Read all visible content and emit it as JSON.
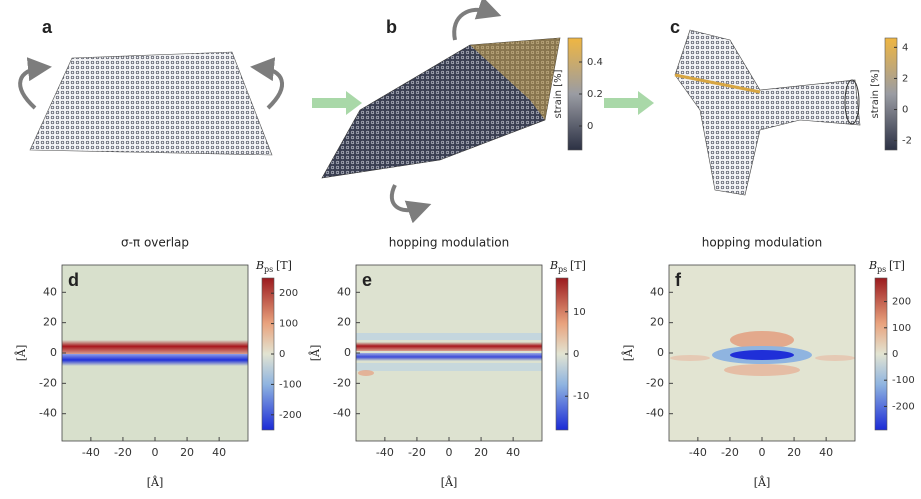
{
  "top_panels": [
    {
      "letter": "a"
    },
    {
      "letter": "b",
      "colorbar": {
        "label": "strain [%]",
        "lim": [
          -0.15,
          0.55
        ],
        "ticks": [
          0,
          0.2,
          0.4
        ]
      }
    },
    {
      "letter": "c",
      "colorbar": {
        "label": "strain [%]",
        "lim": [
          -2.6,
          4.6
        ],
        "ticks": [
          -2,
          0,
          2,
          4
        ]
      }
    }
  ],
  "maps": [
    {
      "letter": "d",
      "title": "σ-π overlap",
      "xlabel": "[Å]",
      "ylabel": "[Å]",
      "xlim": [
        -58,
        58
      ],
      "ylim": [
        -58,
        58
      ],
      "xticks": [
        -40,
        -20,
        0,
        20,
        40
      ],
      "yticks": [
        -40,
        -20,
        0,
        20,
        40
      ],
      "colorbar": {
        "symbol": "B",
        "subscript": "ps",
        "unit": "[T]",
        "lim": [
          -250,
          250
        ],
        "ticks": [
          -200,
          -100,
          0,
          100,
          200
        ]
      }
    },
    {
      "letter": "e",
      "title": "hopping modulation",
      "xlabel": "[Å]",
      "ylabel": "[Å]",
      "xlim": [
        -58,
        58
      ],
      "ylim": [
        -58,
        58
      ],
      "xticks": [
        -40,
        -20,
        0,
        20,
        40
      ],
      "yticks": [
        -40,
        -20,
        0,
        20,
        40
      ],
      "colorbar": {
        "symbol": "B",
        "subscript": "ps",
        "unit": "[T]",
        "lim": [
          -18,
          18
        ],
        "ticks": [
          -10,
          0,
          10
        ]
      }
    },
    {
      "letter": "f",
      "title": "hopping modulation",
      "xlabel": "[Å]",
      "ylabel": "[Å]",
      "xlim": [
        -58,
        58
      ],
      "ylim": [
        -58,
        58
      ],
      "xticks": [
        -40,
        -20,
        0,
        20,
        40
      ],
      "yticks": [
        -40,
        -20,
        0,
        20,
        40
      ],
      "colorbar": {
        "symbol": "B",
        "subscript": "ps",
        "unit": "[T]",
        "lim": [
          -290,
          290
        ],
        "ticks": [
          -200,
          -100,
          0,
          100,
          200
        ]
      }
    }
  ]
}
